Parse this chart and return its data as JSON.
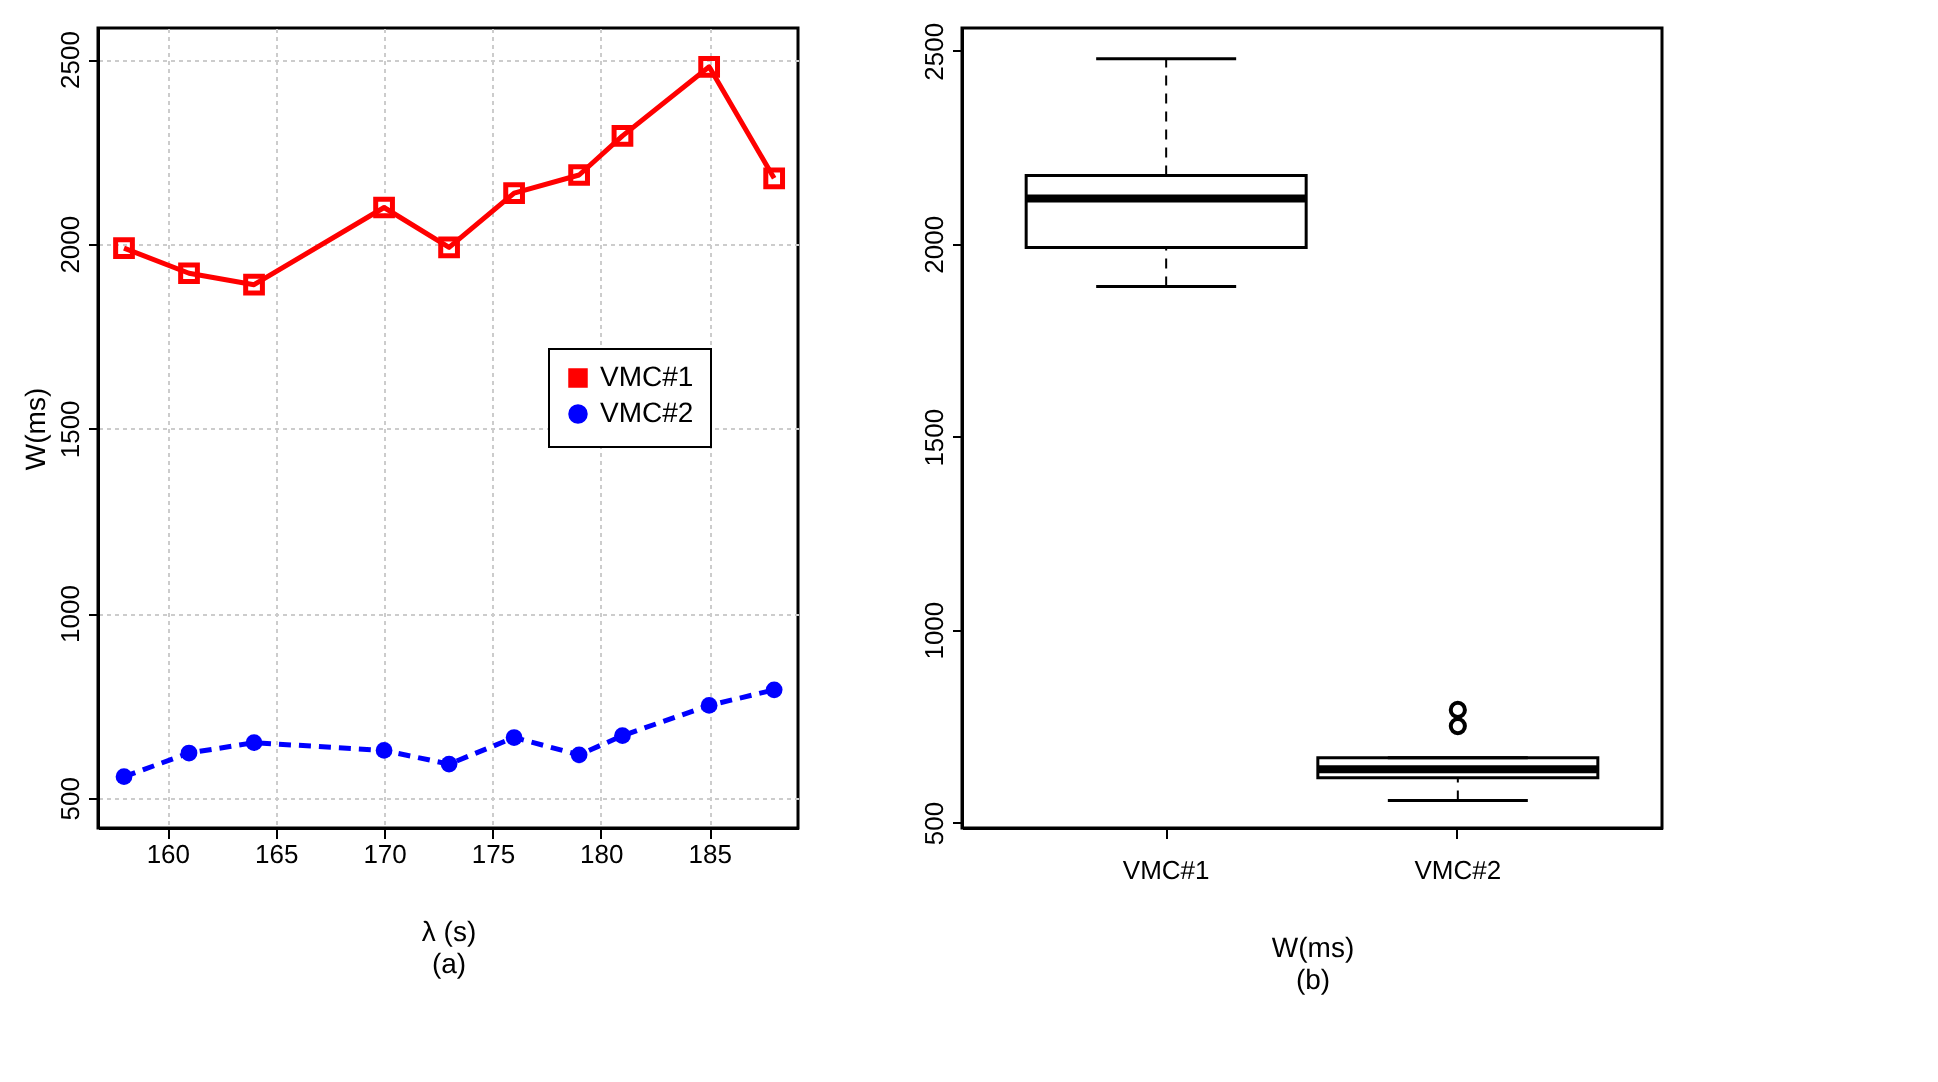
{
  "chart_data": [
    {
      "type": "line",
      "xlabel": "λ (s)",
      "ylabel": "W(ms)",
      "annotations": [
        "(a)"
      ],
      "x": [
        158,
        161,
        164,
        170,
        173,
        176,
        179,
        181,
        185,
        188
      ],
      "series": [
        {
          "name": "VMC#1",
          "color": "#ff0000",
          "marker": "square",
          "line_style": "solid",
          "values": [
            1988,
            1920,
            1889,
            2098,
            1990,
            2137,
            2186,
            2292,
            2479,
            2177
          ]
        },
        {
          "name": "VMC#2",
          "color": "#0000ff",
          "marker": "circle",
          "line_style": "dashed",
          "values": [
            557,
            621,
            649,
            628,
            591,
            663,
            616,
            668,
            750,
            792
          ]
        }
      ],
      "xlim": [
        156.8,
        189.1
      ],
      "xticks": [
        160,
        165,
        170,
        175,
        180,
        185
      ],
      "ylim": [
        418,
        2584
      ],
      "yticks": [
        500,
        1000,
        1500,
        2000,
        2500
      ],
      "grid": true,
      "legend": "right"
    },
    {
      "type": "box",
      "xlabel": "W(ms)",
      "annotations": [
        "(b)"
      ],
      "categories": [
        "VMC#1",
        "VMC#2"
      ],
      "boxes": [
        {
          "low": 1889,
          "q1": 1990,
          "median": 2117,
          "q3": 2177,
          "high": 2479
        },
        {
          "low": 557,
          "q1": 616,
          "median": 638,
          "q3": 668,
          "high": 668,
          "outliers": [
            750,
            792
          ]
        }
      ],
      "ylim": [
        486,
        2559
      ],
      "yticks": [
        500,
        1000,
        1500,
        2000,
        2500
      ],
      "grid": false
    }
  ]
}
